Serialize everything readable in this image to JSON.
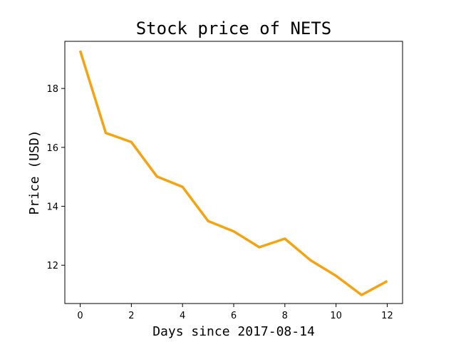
{
  "chart_data": {
    "type": "line",
    "title": "Stock price of NETS",
    "xlabel": "Days since 2017-08-14",
    "ylabel": "Price (USD)",
    "x": [
      0,
      1,
      2,
      3,
      4,
      5,
      6,
      7,
      8,
      9,
      10,
      11,
      12
    ],
    "series": [
      {
        "color": "#f5a30f",
        "values": [
          19.28,
          16.49,
          16.18,
          15.01,
          14.66,
          13.5,
          13.15,
          12.61,
          12.9,
          12.17,
          11.64,
          10.99,
          11.46
        ]
      }
    ],
    "xlim": [
      -0.6,
      12.6
    ],
    "ylim": [
      10.7,
      19.6
    ],
    "xticks": [
      "0",
      "2",
      "4",
      "6",
      "8",
      "10",
      "12"
    ],
    "yticks": [
      "12",
      "14",
      "16",
      "18"
    ],
    "grid": false
  }
}
